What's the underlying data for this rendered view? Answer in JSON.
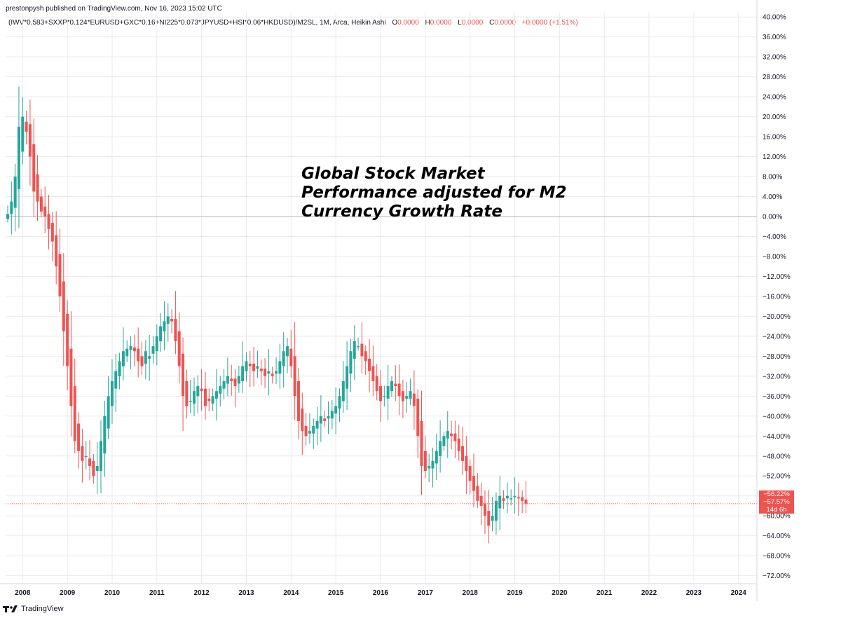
{
  "header": {
    "published": "prestonpysh published on TradingView.com, Nov 16, 2023 15:02 UTC",
    "symbol": "(IWV*0.583+SXXP*0.124*EURUSD+GXC*0.16+NI225*0.073*JPYUSD+HSI*0.06*HKDUSD)/M2SL, 1M, Arca, Heikin Ashi",
    "o_label": "O",
    "o_value": "0.0000",
    "h_label": "H",
    "h_value": "0.0000",
    "l_label": "L",
    "l_value": "0.0000",
    "c_label": "C",
    "c_value": "0.0000",
    "change": "+0.0000 (+1.51%)"
  },
  "annotation": {
    "text": "Global Stock Market Performance adjusted for M2 Currency Growth Rate"
  },
  "price_tags": {
    "tag1": "−56.22%",
    "tag2": "−57.57%",
    "tag3": "14d 6h"
  },
  "footer": {
    "brand": "TradingView"
  },
  "colors": {
    "up": "#26a69a",
    "down": "#ef5350",
    "grid": "#e9e9ea",
    "zero_line": "#b2b5be"
  },
  "chart_data": {
    "type": "candlestick",
    "subtype": "heikin-ashi",
    "timeframe": "1M",
    "start_month": "2007-09",
    "ylim": [
      -74,
      40
    ],
    "yticks": [
      40,
      36,
      32,
      28,
      24,
      20,
      16,
      12,
      8,
      4,
      0,
      -4,
      -8,
      -12,
      -16,
      -20,
      -24,
      -28,
      -32,
      -36,
      -40,
      -44,
      -48,
      -52,
      -56,
      -60,
      -64,
      -68,
      -72
    ],
    "ytick_labels": [
      "40.00%",
      "36.00%",
      "32.00%",
      "28.00%",
      "24.00%",
      "20.00%",
      "16.00%",
      "12.00%",
      "8.00%",
      "4.00%",
      "0.00%",
      "−4.00%",
      "−8.00%",
      "−12.00%",
      "−16.00%",
      "−20.00%",
      "−24.00%",
      "−28.00%",
      "−32.00%",
      "−36.00%",
      "−40.00%",
      "−44.00%",
      "−48.00%",
      "−52.00%",
      "−56.00%",
      "−60.00%",
      "−64.00%",
      "−68.00%",
      "−72.00%"
    ],
    "x_labels": [
      "2008",
      "2009",
      "2010",
      "2011",
      "2012",
      "2013",
      "2014",
      "2015",
      "2016",
      "2017",
      "2018",
      "2019",
      "2020",
      "2021",
      "2022",
      "2023",
      "2024"
    ],
    "zero_line": 0,
    "last_value": -57.57,
    "close_path": [
      [
        0,
        0.5
      ],
      [
        1,
        3
      ],
      [
        2,
        8
      ],
      [
        3,
        18
      ],
      [
        4,
        20
      ],
      [
        5,
        17
      ],
      [
        6,
        12
      ],
      [
        7,
        5
      ],
      [
        8,
        3
      ],
      [
        9,
        1
      ],
      [
        10,
        0
      ],
      [
        12,
        -5
      ],
      [
        13,
        -10
      ],
      [
        14,
        -16
      ],
      [
        16,
        -30
      ],
      [
        17,
        -38
      ],
      [
        18,
        -45
      ],
      [
        19,
        -47
      ],
      [
        20,
        -49
      ],
      [
        21,
        -48
      ],
      [
        22,
        -50
      ],
      [
        23,
        -52
      ],
      [
        24,
        -50
      ],
      [
        25,
        -45
      ],
      [
        26,
        -40
      ],
      [
        27,
        -36
      ],
      [
        28,
        -33
      ],
      [
        29,
        -31
      ],
      [
        30,
        -29
      ],
      [
        31,
        -27
      ],
      [
        33,
        -26
      ],
      [
        34,
        -27
      ],
      [
        35,
        -29
      ],
      [
        36,
        -30
      ],
      [
        37,
        -27
      ],
      [
        38,
        -28
      ],
      [
        39,
        -26
      ],
      [
        40,
        -24
      ],
      [
        41,
        -22
      ],
      [
        42,
        -21
      ],
      [
        43,
        -20
      ],
      [
        44,
        -21
      ],
      [
        45,
        -25
      ],
      [
        46,
        -30
      ],
      [
        47,
        -36
      ],
      [
        48,
        -38
      ],
      [
        49,
        -37
      ],
      [
        50,
        -35
      ],
      [
        51,
        -34
      ],
      [
        52,
        -35
      ],
      [
        53,
        -38
      ],
      [
        54,
        -37
      ],
      [
        55,
        -36
      ],
      [
        56,
        -35
      ],
      [
        57,
        -34
      ],
      [
        58,
        -33
      ],
      [
        59,
        -32
      ],
      [
        60,
        -33
      ],
      [
        61,
        -34
      ],
      [
        62,
        -32
      ],
      [
        63,
        -30
      ],
      [
        64,
        -29
      ],
      [
        65,
        -30
      ],
      [
        66,
        -31
      ],
      [
        67,
        -30
      ],
      [
        68,
        -31
      ],
      [
        69,
        -32
      ],
      [
        70,
        -31
      ],
      [
        71,
        -32
      ],
      [
        72,
        -31
      ],
      [
        73,
        -29
      ],
      [
        74,
        -27
      ],
      [
        75,
        -26
      ],
      [
        76,
        -30
      ],
      [
        77,
        -36
      ],
      [
        78,
        -41
      ],
      [
        79,
        -43
      ],
      [
        80,
        -44
      ],
      [
        81,
        -43
      ],
      [
        82,
        -42
      ],
      [
        83,
        -41
      ],
      [
        84,
        -40
      ],
      [
        85,
        -41
      ],
      [
        86,
        -40
      ],
      [
        87,
        -39
      ],
      [
        88,
        -38
      ],
      [
        89,
        -36
      ],
      [
        90,
        -33
      ],
      [
        91,
        -30
      ],
      [
        92,
        -27
      ],
      [
        93,
        -25
      ],
      [
        94,
        -26
      ],
      [
        95,
        -28
      ],
      [
        96,
        -29
      ],
      [
        97,
        -31
      ],
      [
        98,
        -33
      ],
      [
        99,
        -35
      ],
      [
        100,
        -37
      ],
      [
        101,
        -36
      ],
      [
        102,
        -34
      ],
      [
        103,
        -33
      ],
      [
        104,
        -34
      ],
      [
        105,
        -36
      ],
      [
        106,
        -37
      ],
      [
        107,
        -36
      ],
      [
        108,
        -35
      ],
      [
        109,
        -38
      ],
      [
        110,
        -44
      ],
      [
        111,
        -50
      ],
      [
        112,
        -51
      ],
      [
        113,
        -50
      ],
      [
        114,
        -49
      ],
      [
        115,
        -47
      ],
      [
        116,
        -45
      ],
      [
        117,
        -44
      ],
      [
        118,
        -43
      ],
      [
        119,
        -44
      ],
      [
        120,
        -45
      ],
      [
        121,
        -47
      ],
      [
        122,
        -49
      ],
      [
        123,
        -51
      ],
      [
        124,
        -53
      ],
      [
        125,
        -55
      ],
      [
        126,
        -57
      ],
      [
        127,
        -58
      ],
      [
        128,
        -60
      ],
      [
        129,
        -62
      ],
      [
        130,
        -60
      ],
      [
        131,
        -57
      ],
      [
        132,
        -56
      ],
      [
        133,
        -57
      ],
      [
        134,
        -56
      ],
      [
        135,
        -56.5
      ],
      [
        136,
        -56
      ],
      [
        137,
        -56.5
      ],
      [
        138,
        -57
      ],
      [
        139,
        -57.57
      ]
    ]
  }
}
